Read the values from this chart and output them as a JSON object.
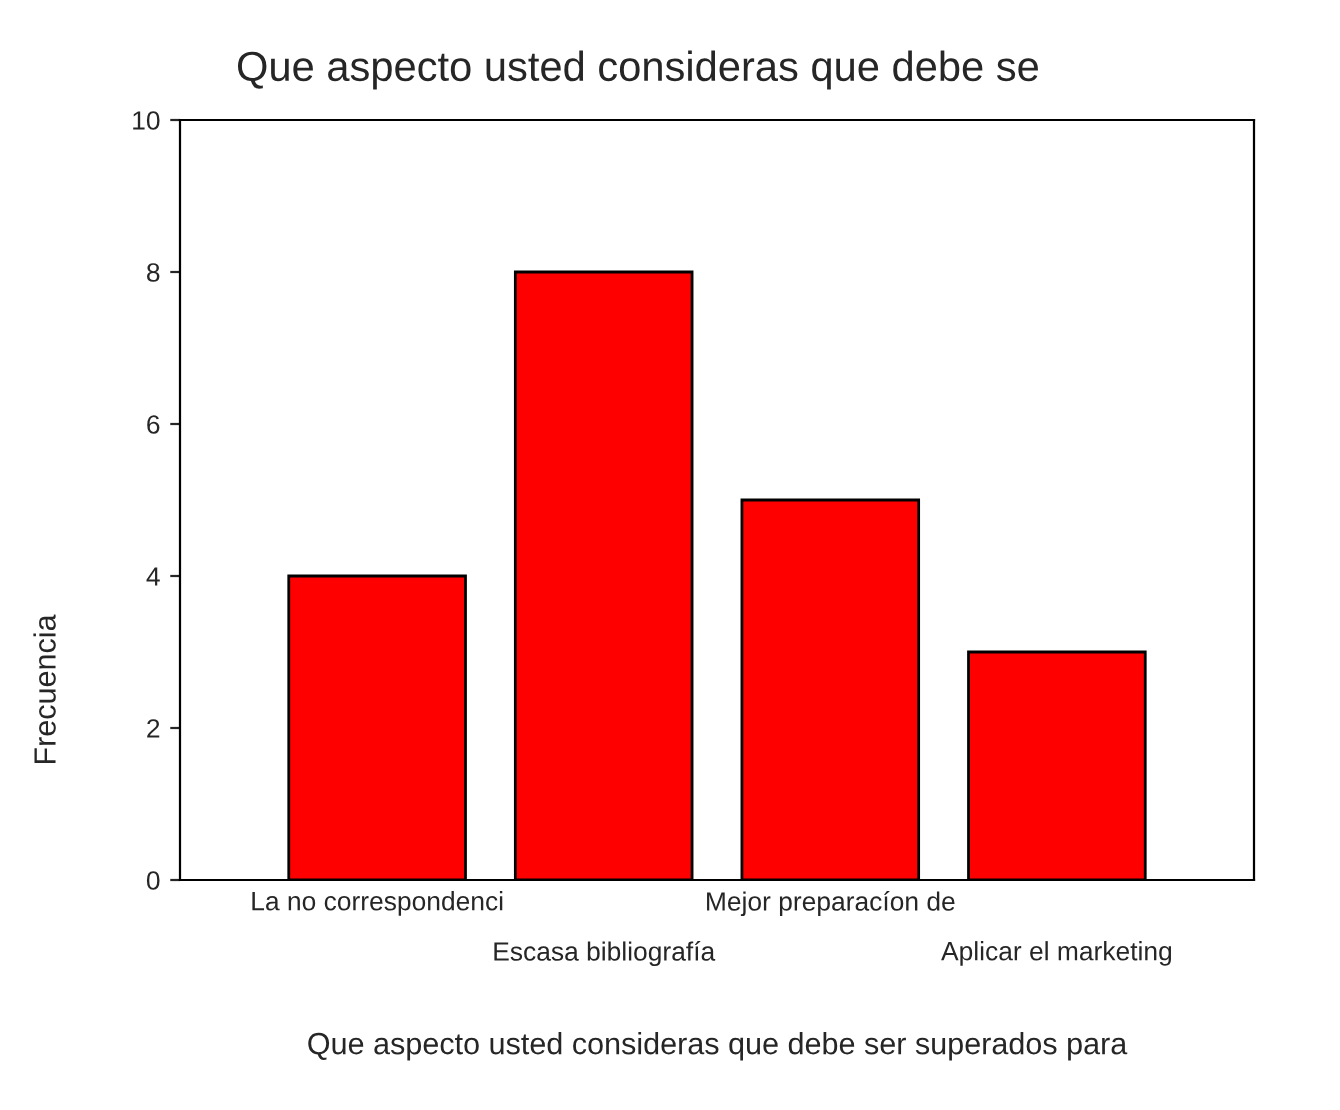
{
  "chart_data": {
    "type": "bar",
    "title": "Que aspecto usted consideras que debe se",
    "xlabel": "Que aspecto usted consideras que debe ser superados para",
    "ylabel": "Frecuencia",
    "categories": [
      "La no correspondenci",
      "Escasa bibliografía",
      "Mejor preparacíon de",
      "Aplicar el marketing"
    ],
    "values": [
      4,
      8,
      5,
      3
    ],
    "color": "#ff0000",
    "ylim": [
      0,
      10
    ],
    "yticks": [
      0,
      2,
      4,
      6,
      8,
      10
    ],
    "grid": false,
    "legend": false
  }
}
